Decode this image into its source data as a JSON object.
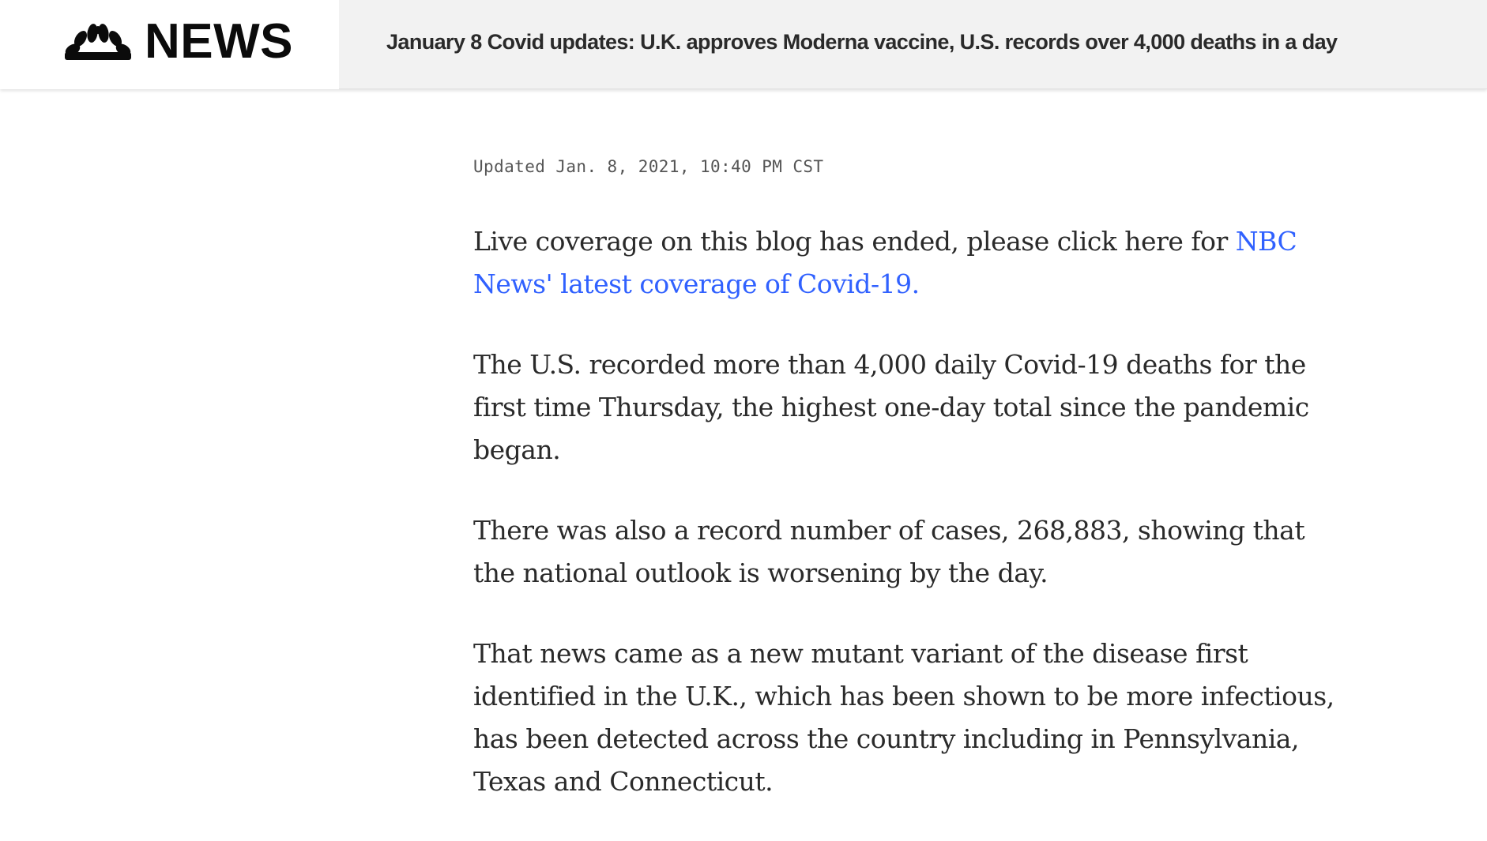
{
  "header": {
    "brand": "NEWS",
    "logo_icon": "nbc-peacock-icon",
    "headline": "January 8 Covid updates: U.K. approves Moderna vaccine, U.S. records over 4,000 deaths in a day"
  },
  "article": {
    "timestamp": "Updated Jan. 8, 2021, 10:40 PM CST",
    "intro_text": "Live coverage on this blog has ended, please click here for ",
    "intro_link": "NBC News' latest coverage of Covid-19.",
    "paragraphs": [
      "The U.S. recorded more than 4,000 daily Covid-19 deaths for the first time Thursday, the highest one-day total since the pandemic began.",
      "There was also a record number of cases, 268,883, showing that the national outlook is worsening by the day.",
      "That news came as a new mutant variant of the disease first identified in the U.K., which has been shown to be more infectious, has been detected across the country including in Pennsylvania, Texas and Connecticut."
    ]
  },
  "colors": {
    "link": "#3061ff",
    "text": "#2a2a2a",
    "header_bg": "#f2f2f2"
  }
}
